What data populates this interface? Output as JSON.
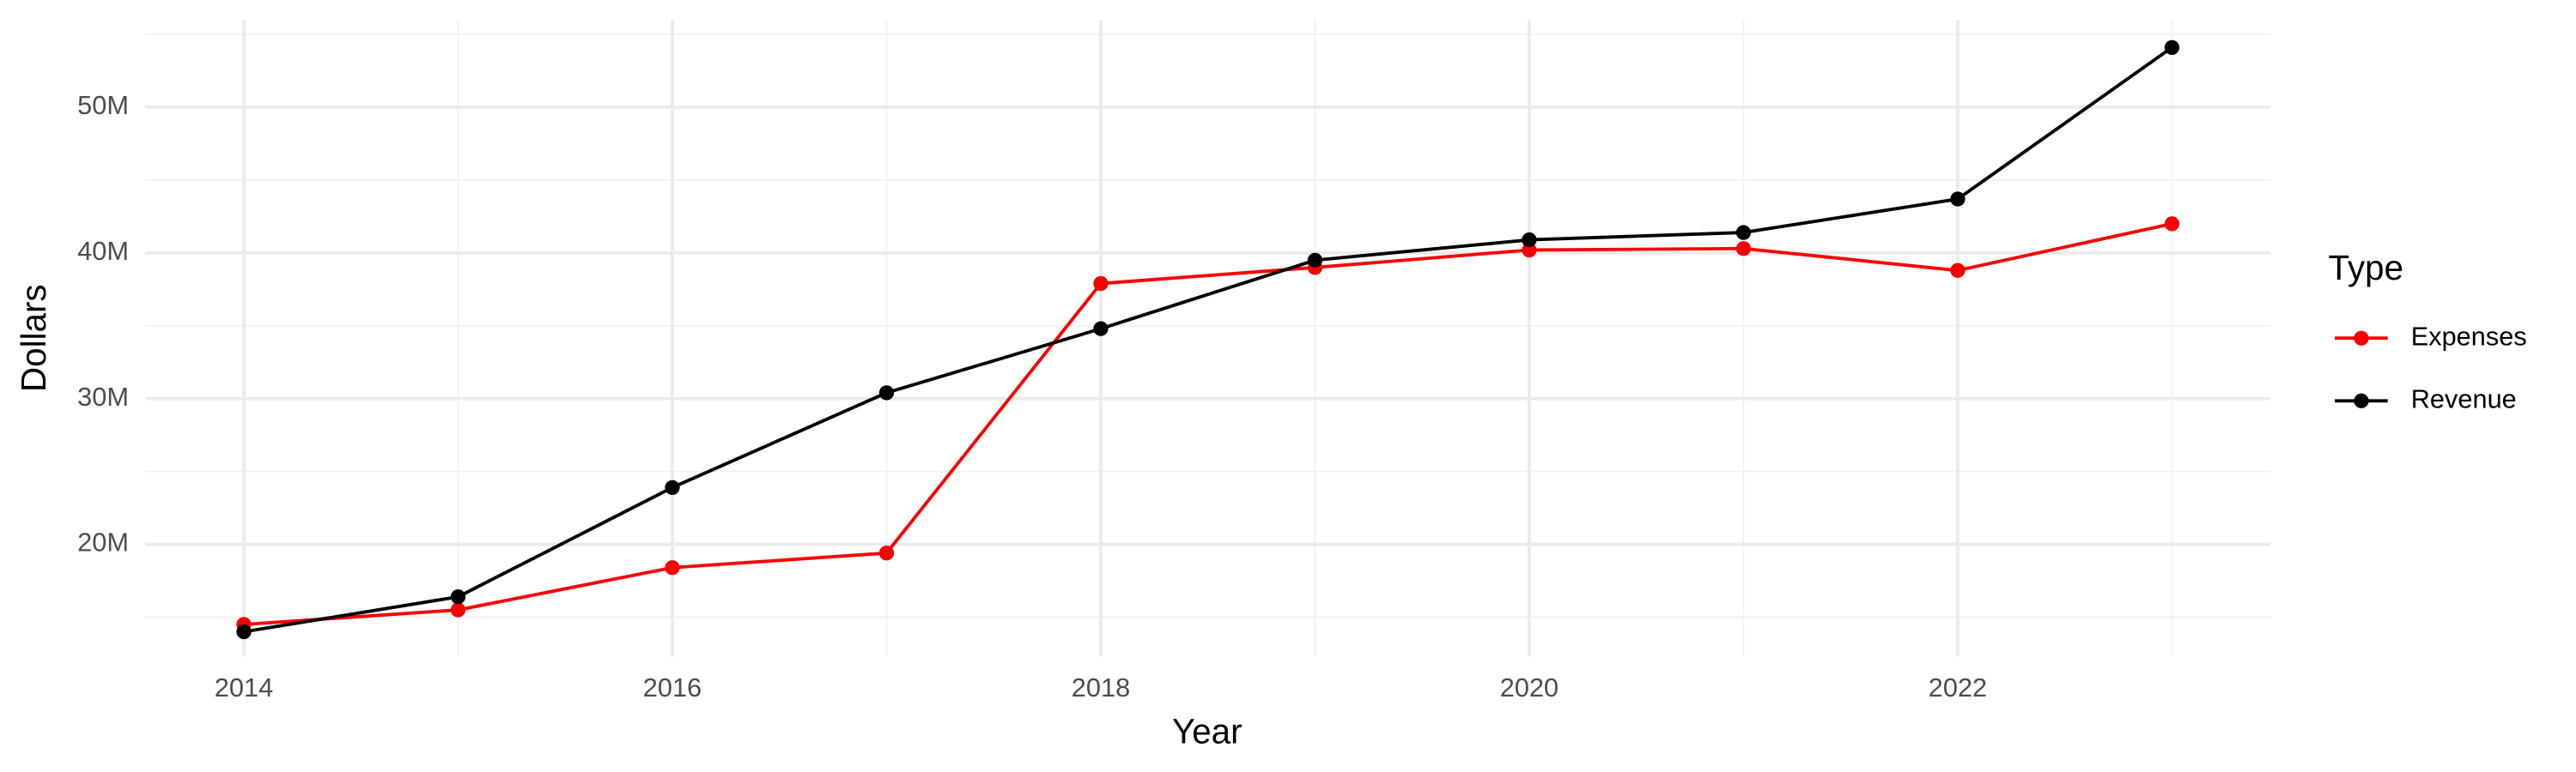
{
  "chart_data": {
    "type": "line",
    "x_label": "Year",
    "y_label": "Dollars",
    "legend_title": "Type",
    "legend_position": "right",
    "x": [
      2014,
      2015,
      2016,
      2017,
      2018,
      2019,
      2020,
      2021,
      2022,
      2023
    ],
    "series": [
      {
        "name": "Expenses",
        "color": "#f80000",
        "values": [
          14500000,
          15500000,
          18400000,
          19400000,
          37900000,
          39000000,
          40200000,
          40300000,
          38800000,
          42000000
        ]
      },
      {
        "name": "Revenue",
        "color": "#000000",
        "values": [
          14000000,
          16400000,
          23900000,
          30400000,
          34800000,
          39500000,
          40900000,
          41400000,
          43700000,
          54100000
        ]
      }
    ],
    "xlim": [
      2013.54,
      2023.46
    ],
    "xticks": [
      2014,
      2016,
      2018,
      2020,
      2022
    ],
    "ylim": [
      12300000,
      56000000
    ],
    "yticks": [
      {
        "value": 20000000,
        "label": "20M"
      },
      {
        "value": 30000000,
        "label": "30M"
      },
      {
        "value": 40000000,
        "label": "40M"
      },
      {
        "value": 50000000,
        "label": "50M"
      }
    ],
    "grid": true
  }
}
